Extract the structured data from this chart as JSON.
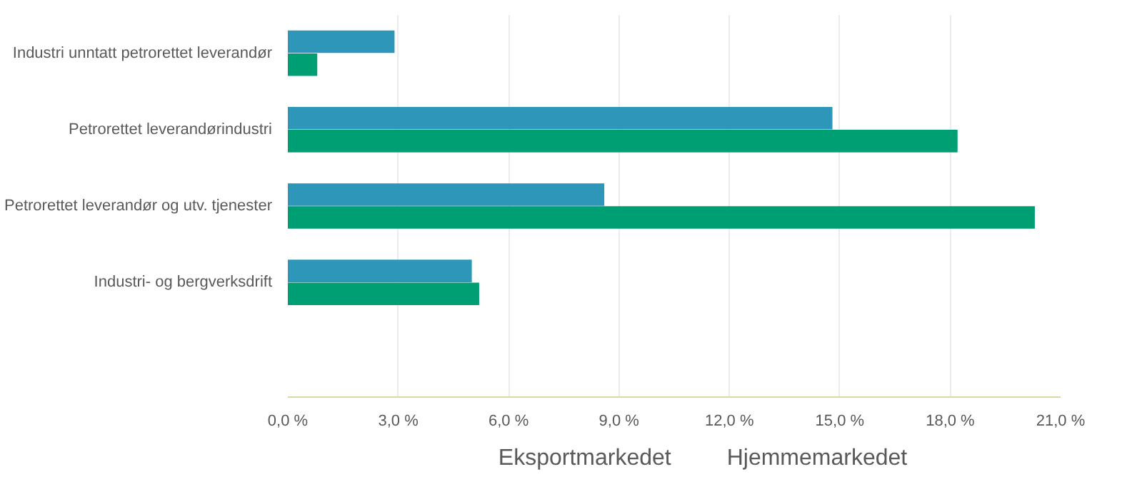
{
  "chart_data": {
    "type": "bar",
    "orientation": "horizontal",
    "categories": [
      "Industri unntatt petrorettet leverandør",
      "Petrorettet leverandørindustri",
      "Petrorettet leverandør og utv. tjenester",
      "Industri- og bergverksdrift",
      null
    ],
    "series": [
      {
        "name": "Eksportmarkedet",
        "color": "#2e96b8",
        "values": [
          2.9,
          14.8,
          8.6,
          5.0,
          null
        ]
      },
      {
        "name": "Hjemmemarkedet",
        "color": "#009e73",
        "values": [
          0.8,
          18.2,
          20.3,
          5.2,
          null
        ]
      }
    ],
    "xlim": [
      0,
      21
    ],
    "xticks": [
      {
        "value": 0,
        "label": "0,0 %"
      },
      {
        "value": 3,
        "label": "3,0 %"
      },
      {
        "value": 6,
        "label": "6,0 %"
      },
      {
        "value": 9,
        "label": "9,0 %"
      },
      {
        "value": 12,
        "label": "12,0 %"
      },
      {
        "value": 15,
        "label": "15,0 %"
      },
      {
        "value": 18,
        "label": "18,0 %"
      },
      {
        "value": 21,
        "label": "21,0 %"
      }
    ],
    "grid": "x",
    "legend": "bottom"
  }
}
